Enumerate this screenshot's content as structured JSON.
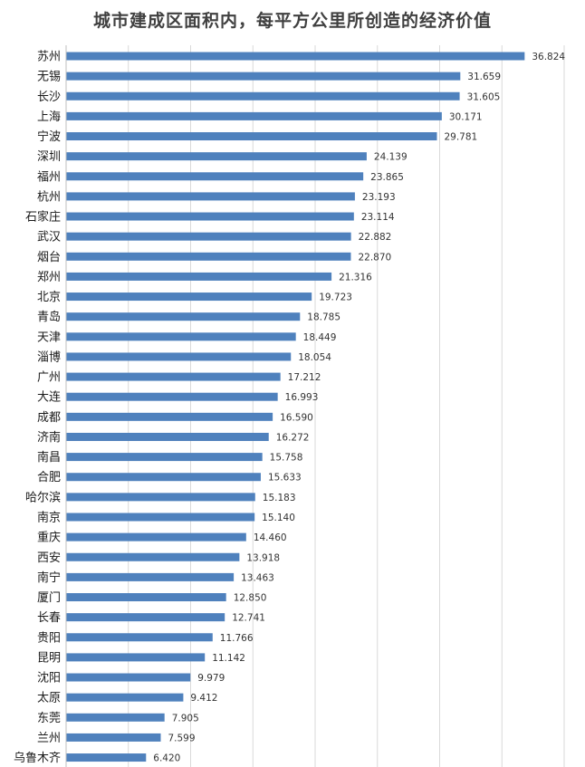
{
  "chart_data": {
    "type": "bar",
    "orientation": "horizontal",
    "title": "城市建成区面积内，每平方公里所创造的经济价值",
    "categories": [
      "苏州",
      "无锡",
      "长沙",
      "上海",
      "宁波",
      "深圳",
      "福州",
      "杭州",
      "石家庄",
      "武汉",
      "烟台",
      "郑州",
      "北京",
      "青岛",
      "天津",
      "淄博",
      "广州",
      "大连",
      "成都",
      "济南",
      "南昌",
      "合肥",
      "哈尔滨",
      "南京",
      "重庆",
      "西安",
      "南宁",
      "厦门",
      "长春",
      "贵阳",
      "昆明",
      "沈阳",
      "太原",
      "东莞",
      "兰州",
      "乌鲁木齐"
    ],
    "values": [
      36.824,
      31.659,
      31.605,
      30.171,
      29.781,
      24.139,
      23.865,
      23.193,
      23.114,
      22.882,
      22.87,
      21.316,
      19.723,
      18.785,
      18.449,
      18.054,
      17.212,
      16.993,
      16.59,
      16.272,
      15.758,
      15.633,
      15.183,
      15.14,
      14.46,
      13.918,
      13.463,
      12.85,
      12.741,
      11.766,
      11.142,
      9.979,
      9.412,
      7.905,
      7.599,
      6.42
    ],
    "value_labels": [
      "36.824",
      "31.659",
      "31.605",
      "30.171",
      "29.781",
      "24.139",
      "23.865",
      "23.193",
      "23.114",
      "22.882",
      "22.870",
      "21.316",
      "19.723",
      "18.785",
      "18.449",
      "18.054",
      "17.212",
      "16.993",
      "16.590",
      "16.272",
      "15.758",
      "15.633",
      "15.183",
      "15.140",
      "14.460",
      "13.918",
      "13.463",
      "12.850",
      "12.741",
      "11.766",
      "11.142",
      "9.979",
      "9.412",
      "7.905",
      "7.599",
      "6.420"
    ],
    "xlim": [
      0,
      40
    ],
    "grid": true,
    "bar_color": "#4f81bd",
    "grid_color": "#d9d9d9"
  }
}
